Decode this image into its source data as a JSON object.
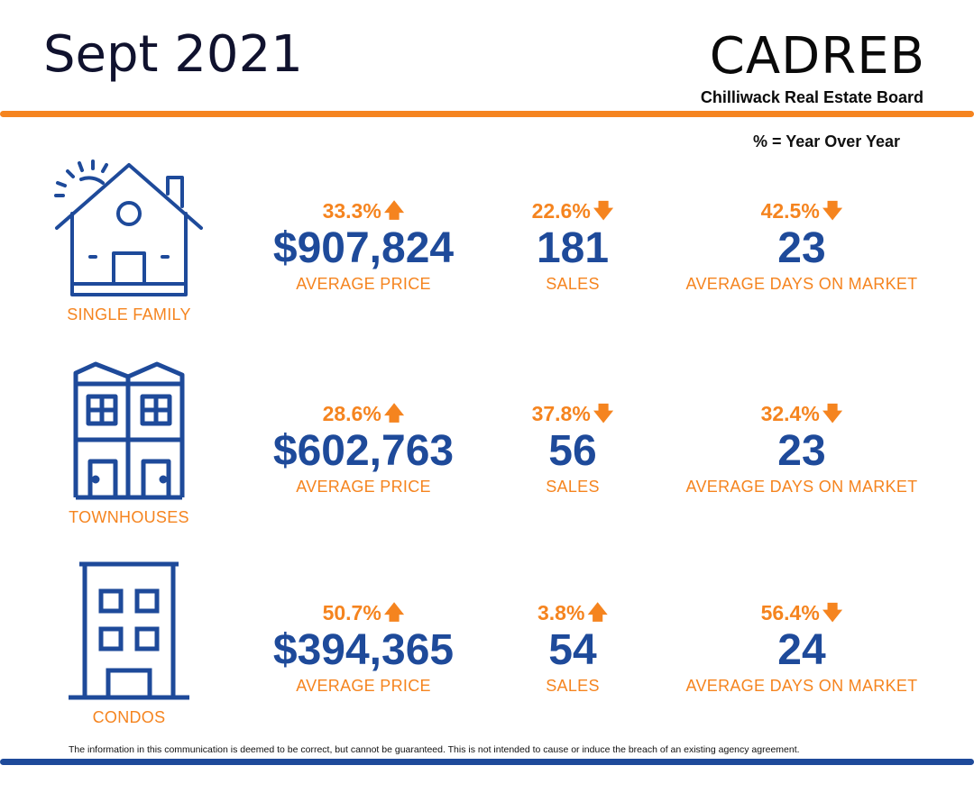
{
  "header": {
    "title": "Sept 2021",
    "brand": "CADREB",
    "brand_subtitle": "Chilliwack Real Estate Board",
    "yoy_note": "% = Year Over Year"
  },
  "colors": {
    "accent_orange": "#f5841f",
    "accent_blue": "#1e4a9a",
    "title_dark": "#10122e"
  },
  "rows": [
    {
      "category": "SINGLE FAMILY",
      "icon": "house-icon",
      "price": {
        "pct": "33.3%",
        "direction": "up",
        "value": "$907,824",
        "label": "AVERAGE PRICE"
      },
      "sales": {
        "pct": "22.6%",
        "direction": "down",
        "value": "181",
        "label": "SALES"
      },
      "dom": {
        "pct": "42.5%",
        "direction": "down",
        "value": "23",
        "label": "AVERAGE DAYS ON MARKET"
      }
    },
    {
      "category": "TOWNHOUSES",
      "icon": "townhouse-icon",
      "price": {
        "pct": "28.6%",
        "direction": "up",
        "value": "$602,763",
        "label": "AVERAGE PRICE"
      },
      "sales": {
        "pct": "37.8%",
        "direction": "down",
        "value": "56",
        "label": "SALES"
      },
      "dom": {
        "pct": "32.4%",
        "direction": "down",
        "value": "23",
        "label": "AVERAGE DAYS ON MARKET"
      }
    },
    {
      "category": "CONDOS",
      "icon": "condo-building-icon",
      "price": {
        "pct": "50.7%",
        "direction": "up",
        "value": "$394,365",
        "label": "AVERAGE PRICE"
      },
      "sales": {
        "pct": "3.8%",
        "direction": "up",
        "value": "54",
        "label": "SALES"
      },
      "dom": {
        "pct": "56.4%",
        "direction": "down",
        "value": "24",
        "label": "AVERAGE DAYS ON MARKET"
      }
    }
  ],
  "footer": {
    "disclaimer": "The information in this communication is deemed to be correct, but cannot be guaranteed. This is not intended to cause or induce the breach of an existing agency agreement."
  }
}
